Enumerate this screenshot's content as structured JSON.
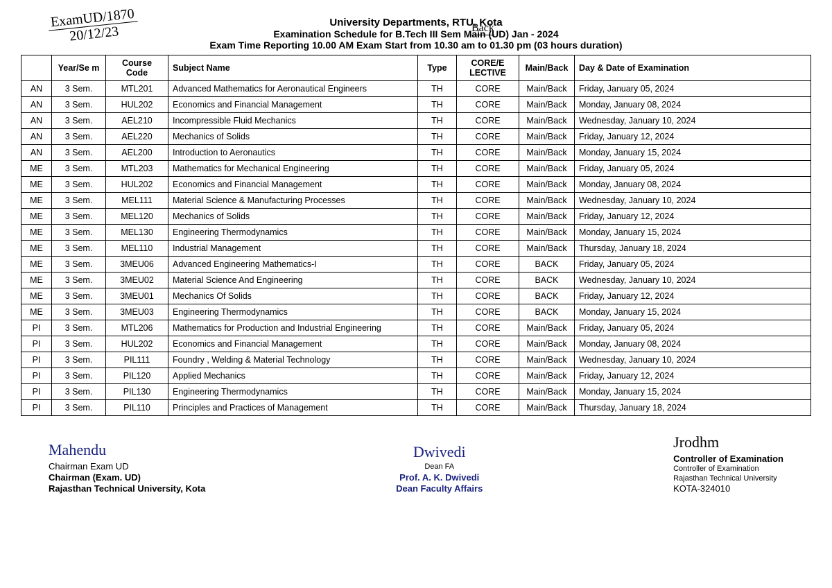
{
  "handwritten": {
    "ref_line1": "ExamUD/1870",
    "ref_line2": "20/12/23",
    "back_note": "Back"
  },
  "header": {
    "line1": "University Departments, RTU, Kota",
    "line2": "Examination Schedule for B.Tech III Sem Main (UD) Jan - 2024",
    "line3": "Exam Time Reporting 10.00 AM Exam Start from 10.30 am to 01.30 pm (03 hours duration)"
  },
  "columns": [
    "",
    "Year/Se m",
    "Course Code",
    "Subject Name",
    "Type",
    "CORE/E LECTIVE",
    "Main/Back",
    "Day & Date of Examination"
  ],
  "rows": [
    [
      "AN",
      "3 Sem.",
      "MTL201",
      "Advanced Mathematics for Aeronautical Engineers",
      "TH",
      "CORE",
      "Main/Back",
      "Friday, January 05, 2024"
    ],
    [
      "AN",
      "3 Sem.",
      "HUL202",
      "Economics and Financial Management",
      "TH",
      "CORE",
      "Main/Back",
      "Monday, January 08, 2024"
    ],
    [
      "AN",
      "3 Sem.",
      "AEL210",
      "Incompressible Fluid Mechanics",
      "TH",
      "CORE",
      "Main/Back",
      "Wednesday, January 10, 2024"
    ],
    [
      "AN",
      "3 Sem.",
      "AEL220",
      "Mechanics of Solids",
      "TH",
      "CORE",
      "Main/Back",
      "Friday, January 12, 2024"
    ],
    [
      "AN",
      "3 Sem.",
      "AEL200",
      "Introduction to Aeronautics",
      "TH",
      "CORE",
      "Main/Back",
      "Monday, January 15, 2024"
    ],
    [
      "ME",
      "3 Sem.",
      "MTL203",
      "Mathematics for Mechanical Engineering",
      "TH",
      "CORE",
      "Main/Back",
      "Friday, January 05, 2024"
    ],
    [
      "ME",
      "3 Sem.",
      "HUL202",
      "Economics and Financial Management",
      "TH",
      "CORE",
      "Main/Back",
      "Monday, January 08, 2024"
    ],
    [
      "ME",
      "3 Sem.",
      "MEL111",
      "Material Science & Manufacturing Processes",
      "TH",
      "CORE",
      "Main/Back",
      "Wednesday, January 10, 2024"
    ],
    [
      "ME",
      "3 Sem.",
      "MEL120",
      "Mechanics of Solids",
      "TH",
      "CORE",
      "Main/Back",
      "Friday, January 12, 2024"
    ],
    [
      "ME",
      "3 Sem.",
      "MEL130",
      "Engineering Thermodynamics",
      "TH",
      "CORE",
      "Main/Back",
      "Monday, January 15, 2024"
    ],
    [
      "ME",
      "3 Sem.",
      "MEL110",
      "Industrial Management",
      "TH",
      "CORE",
      "Main/Back",
      "Thursday, January 18, 2024"
    ],
    [
      "ME",
      "3 Sem.",
      "3MEU06",
      "Advanced Engineering Mathematics-I",
      "TH",
      "CORE",
      "BACK",
      "Friday, January 05, 2024"
    ],
    [
      "ME",
      "3 Sem.",
      "3MEU02",
      "Material Science And Engineering",
      "TH",
      "CORE",
      "BACK",
      "Wednesday, January 10, 2024"
    ],
    [
      "ME",
      "3 Sem.",
      "3MEU01",
      "Mechanics Of Solids",
      "TH",
      "CORE",
      "BACK",
      "Friday, January 12, 2024"
    ],
    [
      "ME",
      "3 Sem.",
      "3MEU03",
      "Engineering Thermodynamics",
      "TH",
      "CORE",
      "BACK",
      "Monday, January 15, 2024"
    ],
    [
      "PI",
      "3 Sem.",
      "MTL206",
      "Mathematics for Production and Industrial Engineering",
      "TH",
      "CORE",
      "Main/Back",
      "Friday, January 05, 2024"
    ],
    [
      "PI",
      "3 Sem.",
      "HUL202",
      "Economics and Financial Management",
      "TH",
      "CORE",
      "Main/Back",
      "Monday, January 08, 2024"
    ],
    [
      "PI",
      "3 Sem.",
      "PIL111",
      "Foundry , Welding & Material Technology",
      "TH",
      "CORE",
      "Main/Back",
      "Wednesday, January 10, 2024"
    ],
    [
      "PI",
      "3 Sem.",
      "PIL120",
      "Applied Mechanics",
      "TH",
      "CORE",
      "Main/Back",
      "Friday, January 12, 2024"
    ],
    [
      "PI",
      "3 Sem.",
      "PIL130",
      "Engineering Thermodynamics",
      "TH",
      "CORE",
      "Main/Back",
      "Monday, January 15, 2024"
    ],
    [
      "PI",
      "3 Sem.",
      "PIL110",
      "Principles and Practices of Management",
      "TH",
      "CORE",
      "Main/Back",
      "Thursday, January 18, 2024"
    ]
  ],
  "center_cols": [
    0,
    1,
    2,
    4,
    5,
    6
  ],
  "signatures": {
    "left": {
      "scribble": "Mahendu",
      "l1": "Chairman Exam UD",
      "l2": "Chairman (Exam. UD)",
      "l3": "Rajasthan Technical University, Kota"
    },
    "center": {
      "scribble": "Dwivedi",
      "l1": "Dean FA",
      "l2": "Prof. A. K. Dwivedi",
      "l3": "Dean Faculty Affairs"
    },
    "right": {
      "scribble": "Jrodhm",
      "l1": "Controller of Examination",
      "l2": "Controller of Examination",
      "l3": "Rajasthan Technical University",
      "l4": "KOTA-324010"
    }
  }
}
